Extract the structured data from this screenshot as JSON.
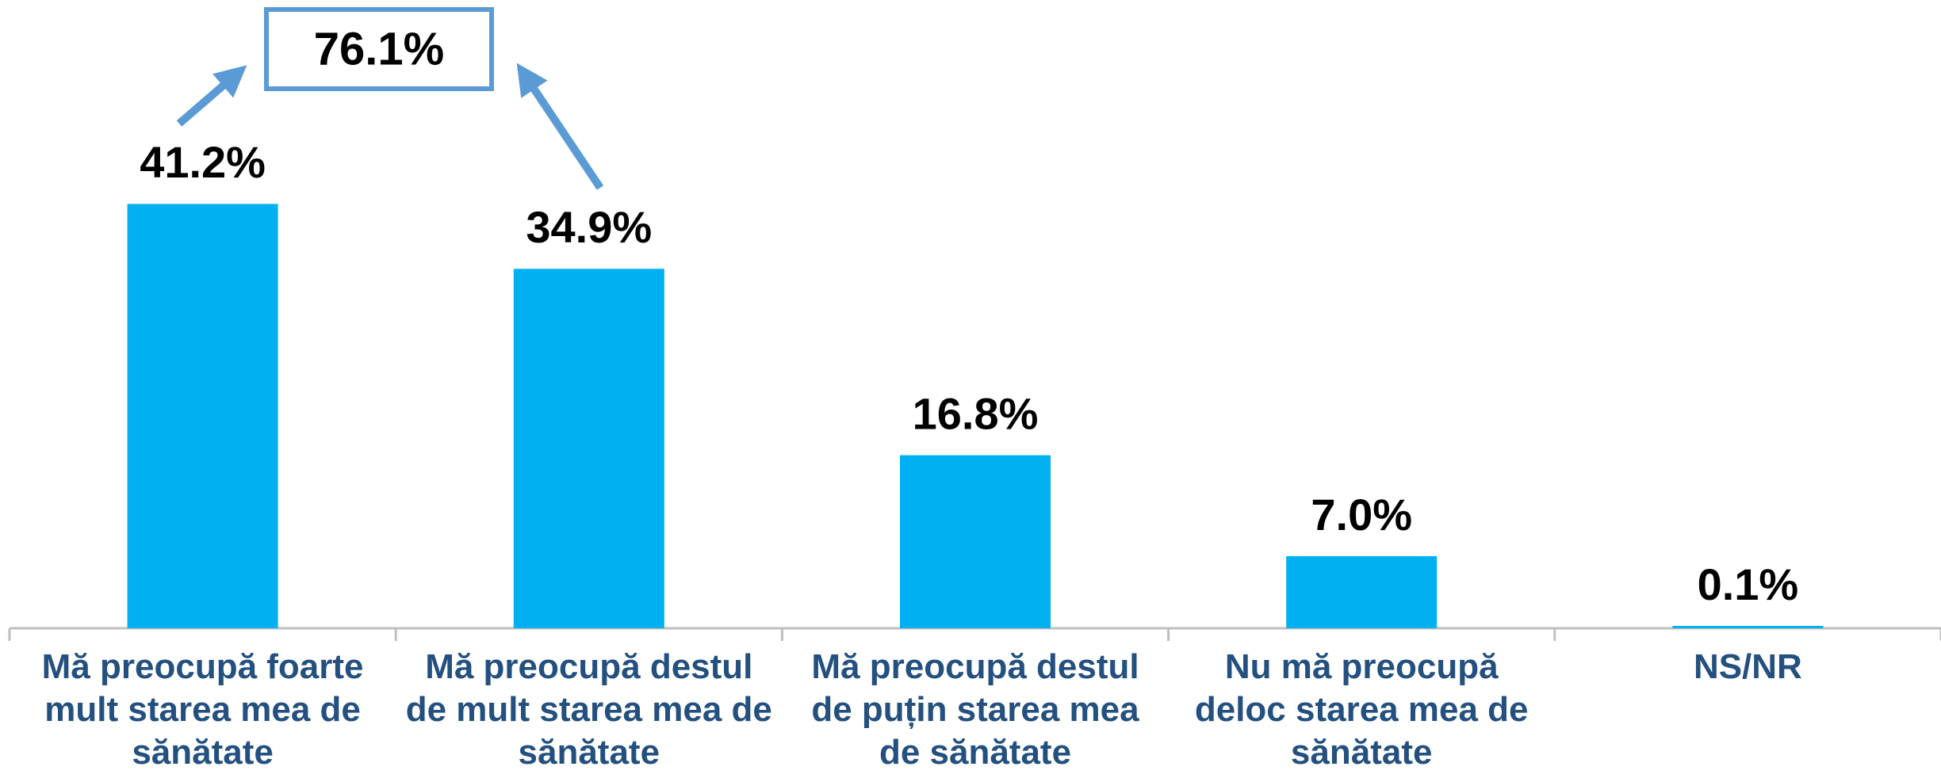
{
  "chart_data": {
    "type": "bar",
    "categories": [
      "Mă preocupă foarte mult starea mea de sănătate",
      "Mă preocupă destul de mult starea mea de sănătate",
      "Mă preocupă destul de puțin starea mea de sănătate",
      "Nu mă preocupă deloc starea mea de sănătate",
      "NS/NR"
    ],
    "values": [
      41.2,
      34.9,
      16.8,
      7.0,
      0.1
    ],
    "value_labels": [
      "41.2%",
      "34.9%",
      "16.8%",
      "7.0%",
      "0.1%"
    ],
    "color": "#00b0f0",
    "annotation": "76.1%"
  }
}
